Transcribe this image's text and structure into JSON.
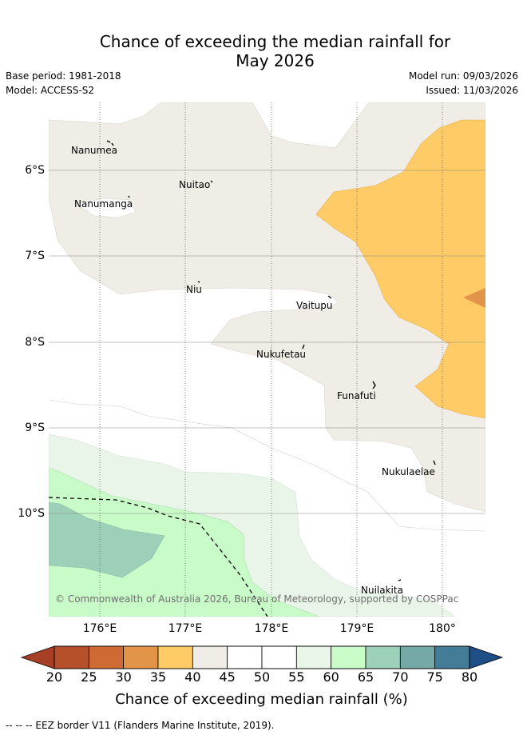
{
  "title_line1": "Chance of exceeding the median rainfall for",
  "title_line2": "May 2026",
  "base_period": "Base period: 1981-2018",
  "model": "Model: ACCESS-S2",
  "model_run": "Model run: 09/03/2026",
  "issued": "Issued: 11/03/2026",
  "y_ticks": [
    "6°S",
    "7°S",
    "8°S",
    "9°S",
    "10°S"
  ],
  "x_ticks": [
    "176°E",
    "177°E",
    "178°E",
    "179°E",
    "180°"
  ],
  "places": [
    "Nanumea",
    "Nuitao",
    "Nanumanga",
    "Niu",
    "Vaitupu",
    "Nukufetau",
    "Funafuti",
    "Nukulaelae",
    "Nuilakita"
  ],
  "copyright": "© Commonwealth of Australia 2026, Bureau of Meteorology, supported by COSPPac",
  "colorbar": {
    "ticks": [
      "20",
      "25",
      "30",
      "35",
      "40",
      "45",
      "50",
      "55",
      "60",
      "65",
      "70",
      "75",
      "80"
    ],
    "colors": [
      "#b5502a",
      "#d06a35",
      "#e29448",
      "#fecb66",
      "#f0ece6",
      "#ffffff",
      "#ffffff",
      "#eaf5ea",
      "#c8fbc8",
      "#9cd0b8",
      "#74a9a8",
      "#447c98"
    ],
    "under_color": "#a63f26",
    "over_color": "#1d4e86",
    "label": "Chance of exceeding median rainfall (%)"
  },
  "footer": "--  --  -- EEZ border V11 (Flanders Marine Institute, 2019)."
}
